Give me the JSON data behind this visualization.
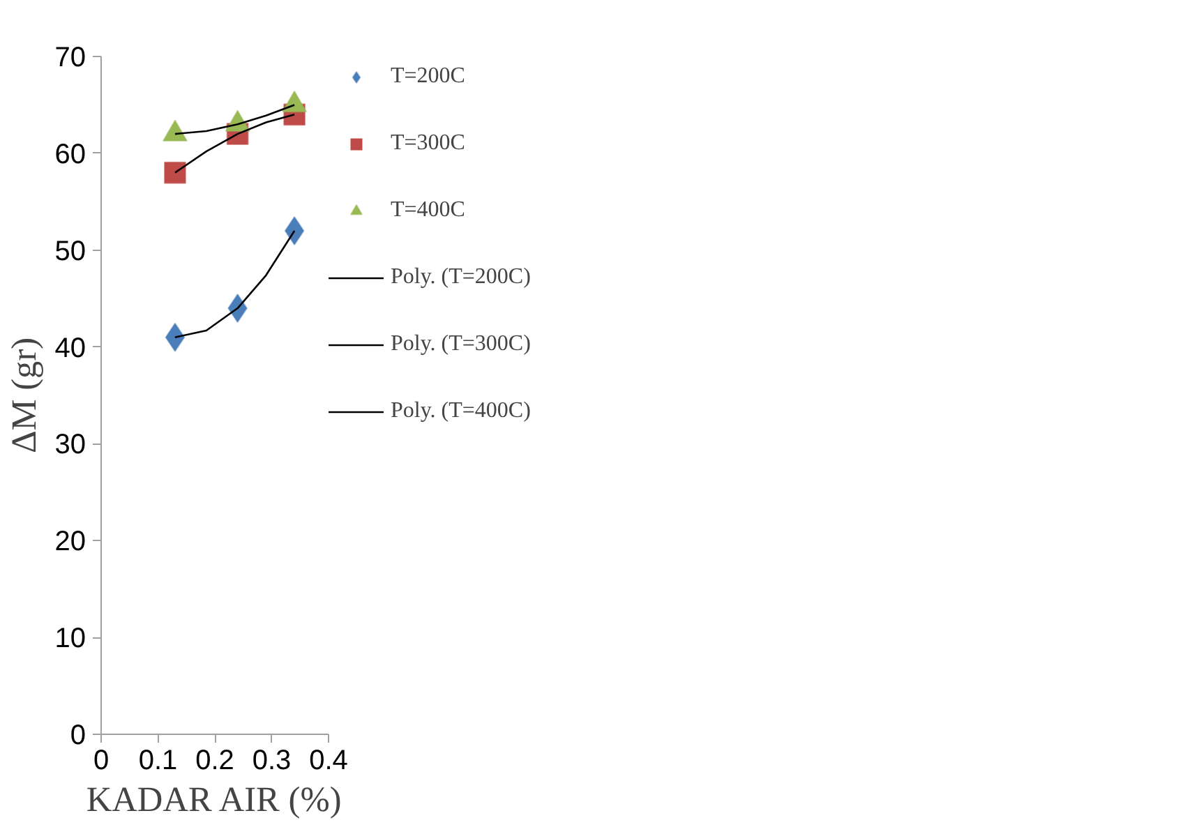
{
  "chart_data": {
    "type": "scatter",
    "xlabel": "KADAR AIR (%)",
    "ylabel": "ΔM (gr)",
    "xlim": [
      0,
      0.4
    ],
    "ylim": [
      0,
      70
    ],
    "xticks": [
      0,
      0.1,
      0.2,
      0.3,
      0.4
    ],
    "yticks": [
      0,
      10,
      20,
      30,
      40,
      50,
      60,
      70
    ],
    "grid": false,
    "legend": "right",
    "series": [
      {
        "name": "T=200C",
        "marker": "diamond",
        "color": "#4a7ebb",
        "x": [
          0.13,
          0.24,
          0.34
        ],
        "values": [
          41,
          44,
          52
        ]
      },
      {
        "name": "T=300C",
        "marker": "square",
        "color": "#be4b48",
        "x": [
          0.13,
          0.24,
          0.34
        ],
        "values": [
          58,
          62,
          64
        ]
      },
      {
        "name": "T=400C",
        "marker": "triangle",
        "color": "#98b954",
        "x": [
          0.13,
          0.24,
          0.34
        ],
        "values": [
          62,
          63,
          65
        ]
      },
      {
        "name": "Poly. (T=200C)",
        "type": "line",
        "color": "#000000",
        "x": [
          0.13,
          0.185,
          0.24,
          0.29,
          0.34
        ],
        "values": [
          41,
          41.7,
          44,
          47.4,
          52
        ]
      },
      {
        "name": "Poly. (T=300C)",
        "type": "line",
        "color": "#000000",
        "x": [
          0.13,
          0.185,
          0.24,
          0.29,
          0.34
        ],
        "values": [
          58,
          60.2,
          62,
          63.2,
          64
        ]
      },
      {
        "name": "Poly. (T=400C)",
        "type": "line",
        "color": "#000000",
        "x": [
          0.13,
          0.185,
          0.24,
          0.29,
          0.34
        ],
        "values": [
          62,
          62.3,
          63,
          63.9,
          65
        ]
      }
    ]
  }
}
